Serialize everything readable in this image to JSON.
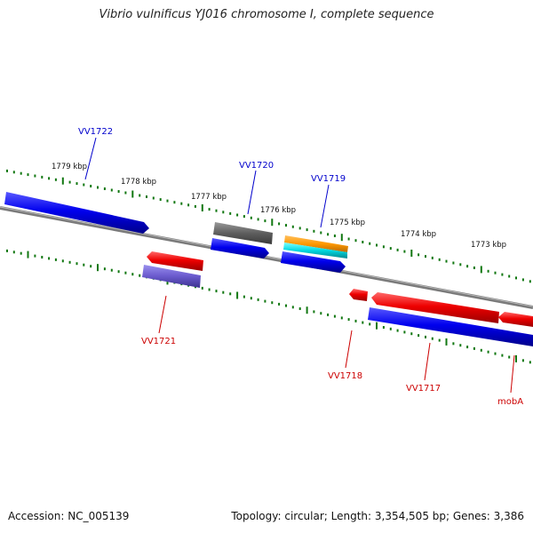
{
  "title": "Vibrio vulnificus YJ016 chromosome I, complete sequence",
  "footer": {
    "accession": "Accession: NC_005139",
    "summary": "Topology: circular; Length: 3,354,505 bp; Genes: 3,386"
  },
  "ruler": {
    "kbp_labels": [
      "1779 kbp",
      "1778 kbp",
      "1777 kbp",
      "1776 kbp",
      "1775 kbp",
      "1774 kbp",
      "1773 kbp"
    ]
  },
  "genes": {
    "forward": [
      "VV1722",
      "VV1720",
      "VV1719"
    ],
    "reverse": [
      "VV1721",
      "VV1718",
      "VV1717",
      "mobA"
    ]
  },
  "colors": {
    "forward_label": "#0000cc",
    "reverse_label": "#cc0000",
    "cds_forward": "#0000ee",
    "cds_reverse": "#ee0000",
    "tick": "#117711",
    "backbone": "#888888"
  }
}
